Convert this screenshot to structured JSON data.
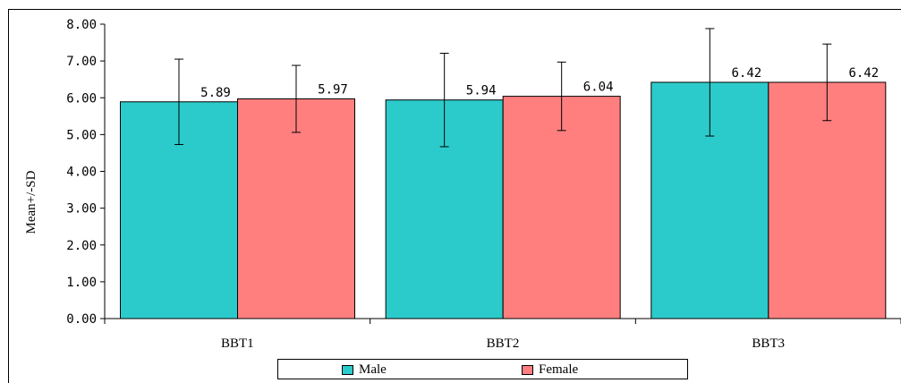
{
  "chart_data": {
    "type": "bar",
    "ylabel": "Mean+/-SD",
    "xlabel": "",
    "ylim": [
      0,
      8
    ],
    "yticks": [
      "0.00",
      "1.00",
      "2.00",
      "3.00",
      "4.00",
      "5.00",
      "6.00",
      "7.00",
      "8.00"
    ],
    "categories": [
      "BBT1",
      "BBT2",
      "BBT3"
    ],
    "series": [
      {
        "name": "Male",
        "color": "#2ccbcb",
        "values": [
          5.89,
          5.94,
          6.42
        ],
        "labels": [
          "5.89",
          "5.94",
          "6.42"
        ],
        "sd": [
          1.16,
          1.27,
          1.46
        ]
      },
      {
        "name": "Female",
        "color": "#ff7f7f",
        "values": [
          5.97,
          6.04,
          6.42
        ],
        "labels": [
          "5.97",
          "6.04",
          "6.42"
        ],
        "sd": [
          0.91,
          0.93,
          1.04
        ]
      }
    ],
    "grid": false,
    "legend_position": "bottom"
  }
}
